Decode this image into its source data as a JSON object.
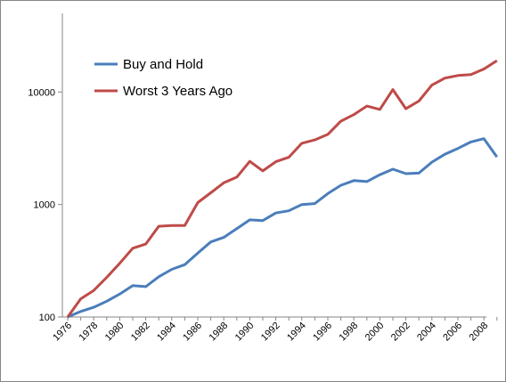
{
  "chart_data": {
    "type": "line",
    "title": "",
    "xlabel": "",
    "ylabel": "",
    "y_scale": "log",
    "ylim": [
      100,
      50000
    ],
    "xlim": [
      1976,
      2009
    ],
    "y_ticks": [
      100,
      1000,
      10000
    ],
    "y_tick_labels": [
      "100",
      "1000",
      "10000"
    ],
    "x_tick_labels": [
      "1976",
      "1978",
      "1980",
      "1982",
      "1984",
      "1986",
      "1988",
      "1990",
      "1992",
      "1994",
      "1996",
      "1998",
      "2000",
      "2002",
      "2004",
      "2006",
      "2008"
    ],
    "legend_position": "top-left",
    "grid": false,
    "x": [
      1976,
      1977,
      1978,
      1979,
      1980,
      1981,
      1982,
      1983,
      1984,
      1985,
      1986,
      1987,
      1988,
      1989,
      1990,
      1991,
      1992,
      1993,
      1994,
      1995,
      1996,
      1997,
      1998,
      1999,
      2000,
      2001,
      2002,
      2003,
      2004,
      2005,
      2006,
      2007,
      2008,
      2009
    ],
    "series": [
      {
        "name": "Buy and Hold",
        "color": "#4a7ebb",
        "values": [
          100,
          112,
          122,
          138,
          160,
          190,
          186,
          228,
          265,
          292,
          370,
          465,
          510,
          610,
          730,
          720,
          840,
          880,
          1000,
          1020,
          1250,
          1480,
          1630,
          1600,
          1840,
          2060,
          1880,
          1900,
          2380,
          2800,
          3150,
          3600,
          3850,
          2650
        ]
      },
      {
        "name": "Worst 3 Years Ago",
        "color": "#be4b48",
        "values": [
          100,
          145,
          172,
          225,
          300,
          408,
          445,
          640,
          650,
          650,
          1040,
          1270,
          1560,
          1750,
          2420,
          1990,
          2400,
          2630,
          3500,
          3750,
          4200,
          5500,
          6300,
          7500,
          7000,
          10500,
          7100,
          8300,
          11500,
          13300,
          14000,
          14300,
          16000,
          19000
        ]
      }
    ]
  }
}
